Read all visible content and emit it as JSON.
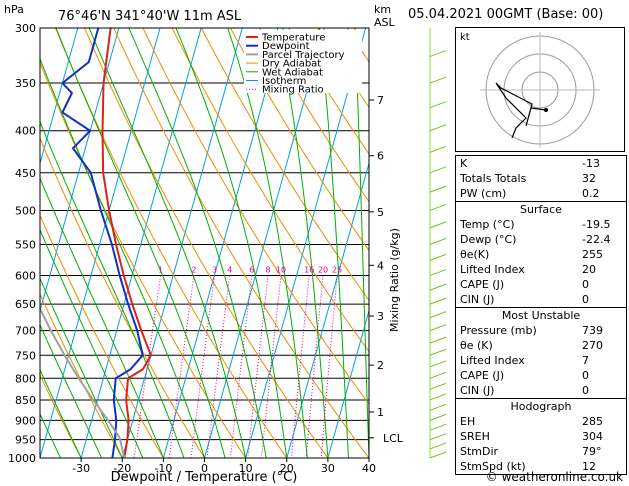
{
  "header": {
    "pressure_unit": "hPa",
    "location": "76°46'N  341°40'W  11m  ASL",
    "km_unit": "km",
    "asl_unit": "ASL",
    "datetime": "05.04.2021  00GMT  (Base: 00)"
  },
  "chart_data": {
    "type": "line",
    "xlabel": "Dewpoint / Temperature (°C)",
    "ylabel": "",
    "right_label": "Mixing Ratio (g/kg)",
    "xlim": [
      -40,
      40
    ],
    "ylim": [
      1000,
      300
    ],
    "x_ticks": [
      "-30",
      "-20",
      "-10",
      "0",
      "10",
      "20",
      "30",
      "40"
    ],
    "pressure_levels": [
      300,
      350,
      400,
      450,
      500,
      550,
      600,
      650,
      700,
      750,
      800,
      850,
      900,
      950,
      1000
    ],
    "km_ticks": [
      {
        "km": "7",
        "p": 367
      },
      {
        "km": "6",
        "p": 429
      },
      {
        "km": "5",
        "p": 502
      },
      {
        "km": "4",
        "p": 583
      },
      {
        "km": "3",
        "p": 672
      },
      {
        "km": "2",
        "p": 771
      },
      {
        "km": "1",
        "p": 879
      }
    ],
    "lcl_label": "LCL",
    "lcl_p": 945,
    "mixing_ratio_labels": [
      "1",
      "2",
      "3",
      "4",
      "6",
      "8",
      "10",
      "16",
      "20",
      "25"
    ],
    "legend": [
      "Temperature",
      "Dewpoint",
      "Parcel Trajectory",
      "Dry Adiabat",
      "Wet Adiabat",
      "Isotherm",
      "Mixing Ratio"
    ],
    "series": [
      {
        "name": "Temperature",
        "color": "#e0201b",
        "points": [
          [
            -19.5,
            1000
          ],
          [
            -20,
            950
          ],
          [
            -21,
            900
          ],
          [
            -23,
            850
          ],
          [
            -24,
            800
          ],
          [
            -21,
            780
          ],
          [
            -20,
            750
          ],
          [
            -24,
            700
          ],
          [
            -28,
            650
          ],
          [
            -32,
            600
          ],
          [
            -36,
            550
          ],
          [
            -40,
            500
          ],
          [
            -44,
            450
          ],
          [
            -47,
            400
          ],
          [
            -50,
            350
          ],
          [
            -52,
            300
          ]
        ]
      },
      {
        "name": "Dewpoint",
        "color": "#1030c0",
        "points": [
          [
            -22.4,
            1000
          ],
          [
            -23,
            950
          ],
          [
            -24,
            900
          ],
          [
            -26,
            850
          ],
          [
            -27,
            800
          ],
          [
            -24,
            780
          ],
          [
            -22,
            750
          ],
          [
            -25,
            700
          ],
          [
            -29,
            650
          ],
          [
            -33,
            600
          ],
          [
            -37,
            550
          ],
          [
            -42,
            500
          ],
          [
            -47,
            450
          ],
          [
            -53,
            420
          ],
          [
            -50,
            400
          ],
          [
            -58,
            380
          ],
          [
            -57,
            360
          ],
          [
            -60,
            350
          ],
          [
            -55,
            330
          ],
          [
            -55,
            300
          ]
        ]
      },
      {
        "name": "Parcel Trajectory",
        "color": "#a0a0a0",
        "points": [
          [
            -19.5,
            1000
          ],
          [
            -22,
            945
          ],
          [
            -26,
            900
          ],
          [
            -31,
            850
          ],
          [
            -36,
            800
          ],
          [
            -41,
            750
          ],
          [
            -46,
            700
          ],
          [
            -51,
            650
          ],
          [
            -57,
            600
          ]
        ]
      }
    ],
    "colors": {
      "temperature": "#e0201b",
      "dewpoint": "#1030c0",
      "parcel": "#a0a0a0",
      "dry_adiabat": "#f08c00",
      "wet_adiabat": "#00b000",
      "isotherm": "#00a0e0",
      "mixing_ratio": "#e000a0"
    }
  },
  "indices": [
    {
      "label": "K",
      "value": "-13"
    },
    {
      "label": "Totals Totals",
      "value": "32"
    },
    {
      "label": "PW (cm)",
      "value": "0.2"
    }
  ],
  "surface": {
    "title": "Surface",
    "rows": [
      {
        "label": "Temp (°C)",
        "value": "-19.5"
      },
      {
        "label": "Dewp (°C)",
        "value": "-22.4"
      },
      {
        "label": "θe(K)",
        "value": "255"
      },
      {
        "label": "Lifted Index",
        "value": "20"
      },
      {
        "label": "CAPE (J)",
        "value": "0"
      },
      {
        "label": "CIN (J)",
        "value": "0"
      }
    ]
  },
  "most_unstable": {
    "title": "Most Unstable",
    "rows": [
      {
        "label": "Pressure (mb)",
        "value": "739"
      },
      {
        "label": "θe (K)",
        "value": "270"
      },
      {
        "label": "Lifted Index",
        "value": "7"
      },
      {
        "label": "CAPE (J)",
        "value": "0"
      },
      {
        "label": "CIN (J)",
        "value": "0"
      }
    ]
  },
  "hodograph": {
    "title": "Hodograph",
    "kt_label": "kt",
    "rows": [
      {
        "label": "EH",
        "value": "285"
      },
      {
        "label": "SREH",
        "value": "304"
      },
      {
        "label": "StmDir",
        "value": "79°"
      },
      {
        "label": "StmSpd (kt)",
        "value": "12"
      }
    ]
  },
  "footer": "© weatheronline.co.uk"
}
